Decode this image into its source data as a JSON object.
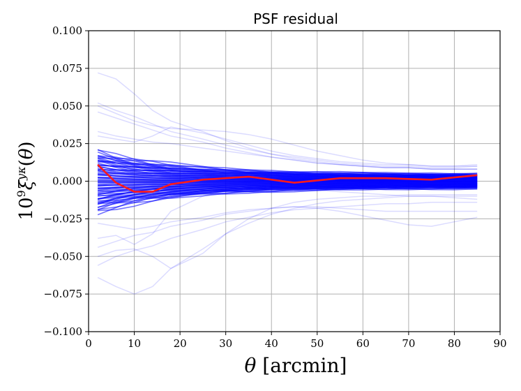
{
  "chart_data": {
    "type": "line",
    "title": "PSF residual",
    "xlabel": "θ [arcmin]",
    "ylabel": "10⁹ξ^{yκ}(θ)",
    "xlim": [
      0,
      90
    ],
    "ylim": [
      -0.1,
      0.1
    ],
    "xticks": [
      0,
      10,
      20,
      30,
      40,
      50,
      60,
      70,
      80,
      90
    ],
    "xtick_labels": [
      "0",
      "10",
      "20",
      "30",
      "40",
      "50",
      "60",
      "70",
      "80",
      "90"
    ],
    "yticks": [
      -0.1,
      -0.075,
      -0.05,
      -0.025,
      0,
      0.025,
      0.05,
      0.075,
      0.1
    ],
    "ytick_labels": [
      "−0.100",
      "−0.075",
      "−0.050",
      "−0.025",
      "0.000",
      "0.025",
      "0.050",
      "0.075",
      "0.100"
    ],
    "grid": true,
    "x": [
      2,
      6,
      10,
      14,
      18,
      25,
      30,
      35,
      40,
      45,
      50,
      55,
      60,
      65,
      70,
      75,
      80,
      85
    ],
    "series": [
      {
        "role": "mean",
        "color": "#ff1a1a",
        "values": [
          0.011,
          -0.001,
          -0.007,
          -0.007,
          -0.002,
          0.001,
          0.002,
          0.003,
          0.001,
          -0.001,
          0.0005,
          0.002,
          0.002,
          0.002,
          0.0015,
          0.001,
          0.0025,
          0.004
        ]
      },
      {
        "role": "realization",
        "color": "#0000ff",
        "values": [
          0.072,
          0.068,
          0.058,
          0.047,
          0.04,
          0.033,
          0.027,
          0.022,
          0.018,
          0.015,
          0.013,
          0.011,
          0.01,
          0.009,
          0.009,
          0.008,
          0.008,
          0.008
        ]
      },
      {
        "role": "realization",
        "color": "#0000ff",
        "values": [
          0.052,
          0.047,
          0.043,
          0.038,
          0.033,
          0.028,
          0.024,
          0.021,
          0.018,
          0.016,
          0.014,
          0.012,
          0.011,
          0.01,
          0.01,
          0.009,
          0.009,
          0.01
        ]
      },
      {
        "role": "realization",
        "color": "#0000ff",
        "values": [
          0.05,
          0.045,
          0.04,
          0.037,
          0.035,
          0.034,
          0.033,
          0.031,
          0.028,
          0.024,
          0.02,
          0.017,
          0.014,
          0.012,
          0.011,
          0.01,
          0.01,
          0.01
        ]
      },
      {
        "role": "realization",
        "color": "#0000ff",
        "values": [
          0.046,
          0.042,
          0.038,
          0.034,
          0.03,
          0.026,
          0.022,
          0.019,
          0.016,
          0.014,
          0.012,
          0.011,
          0.01,
          0.009,
          0.009,
          0.008,
          0.008,
          0.008
        ]
      },
      {
        "role": "realization",
        "color": "#0000ff",
        "values": [
          0.033,
          0.03,
          0.028,
          0.026,
          0.025,
          0.022,
          0.02,
          0.018,
          0.016,
          0.014,
          0.012,
          0.011,
          0.01,
          0.009,
          0.009,
          0.008,
          0.008,
          0.008
        ]
      },
      {
        "role": "realization",
        "color": "#0000ff",
        "values": [
          -0.064,
          -0.07,
          -0.075,
          -0.07,
          -0.058,
          -0.045,
          -0.035,
          -0.028,
          -0.022,
          -0.018,
          -0.015,
          -0.013,
          -0.012,
          -0.011,
          -0.01,
          -0.01,
          -0.01,
          -0.01
        ]
      },
      {
        "role": "realization",
        "color": "#0000ff",
        "values": [
          -0.056,
          -0.05,
          -0.046,
          -0.043,
          -0.038,
          -0.032,
          -0.027,
          -0.024,
          -0.021,
          -0.019,
          -0.018,
          -0.017,
          -0.016,
          -0.015,
          -0.015,
          -0.014,
          -0.014,
          -0.014
        ]
      },
      {
        "role": "realization",
        "color": "#0000ff",
        "values": [
          -0.05,
          -0.046,
          -0.045,
          -0.05,
          -0.058,
          -0.048,
          -0.035,
          -0.025,
          -0.018,
          -0.014,
          -0.012,
          -0.011,
          -0.01,
          -0.01,
          -0.009,
          -0.009,
          -0.009,
          -0.009
        ]
      },
      {
        "role": "realization",
        "color": "#0000ff",
        "values": [
          -0.044,
          -0.04,
          -0.036,
          -0.034,
          -0.03,
          -0.026,
          -0.022,
          -0.02,
          -0.018,
          -0.017,
          -0.018,
          -0.02,
          -0.023,
          -0.026,
          -0.029,
          -0.03,
          -0.027,
          -0.024
        ]
      },
      {
        "role": "realization",
        "color": "#0000ff",
        "values": [
          -0.038,
          -0.036,
          -0.042,
          -0.035,
          -0.02,
          -0.01,
          -0.006,
          -0.004,
          -0.004,
          -0.005,
          -0.006,
          -0.007,
          -0.008,
          -0.009,
          -0.01,
          -0.01,
          -0.011,
          -0.012
        ]
      },
      {
        "role": "realization",
        "color": "#0000ff",
        "values": [
          -0.028,
          -0.03,
          -0.032,
          -0.03,
          -0.027,
          -0.024,
          -0.021,
          -0.019,
          -0.018,
          -0.017,
          -0.017,
          -0.018,
          -0.019,
          -0.02,
          -0.02,
          -0.02,
          -0.02,
          -0.02
        ]
      },
      {
        "role": "realization",
        "color": "#0000ff",
        "values": [
          0.03,
          0.028,
          0.026,
          0.03,
          0.036,
          0.032,
          0.028,
          0.024,
          0.02,
          0.017,
          0.015,
          0.013,
          0.012,
          0.011,
          0.011,
          0.01,
          0.01,
          0.011
        ]
      }
    ]
  }
}
